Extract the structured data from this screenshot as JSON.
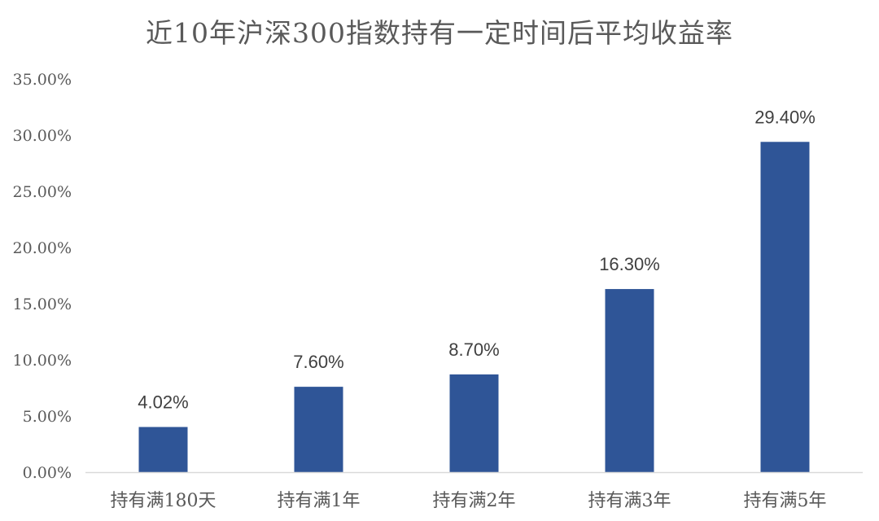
{
  "chart_data": {
    "type": "bar",
    "title": "近10年沪深300指数持有一定时间后平均收益率",
    "xlabel": "",
    "ylabel": "",
    "categories": [
      "持有满180天",
      "持有满1年",
      "持有满2年",
      "持有满3年",
      "持有满5年"
    ],
    "values": [
      4.02,
      7.6,
      8.7,
      16.3,
      29.4
    ],
    "data_labels": [
      "4.02%",
      "7.60%",
      "8.70%",
      "16.30%",
      "29.40%"
    ],
    "ylim": [
      0,
      35
    ],
    "y_ticks": [
      0,
      5,
      10,
      15,
      20,
      25,
      30,
      35
    ],
    "y_tick_labels": [
      "0.00%",
      "5.00%",
      "10.00%",
      "15.00%",
      "20.00%",
      "25.00%",
      "30.00%",
      "35.00%"
    ],
    "grid": false,
    "legend": "none",
    "bar_color": "#2F5597",
    "axis_color": "#D9D9D9"
  }
}
